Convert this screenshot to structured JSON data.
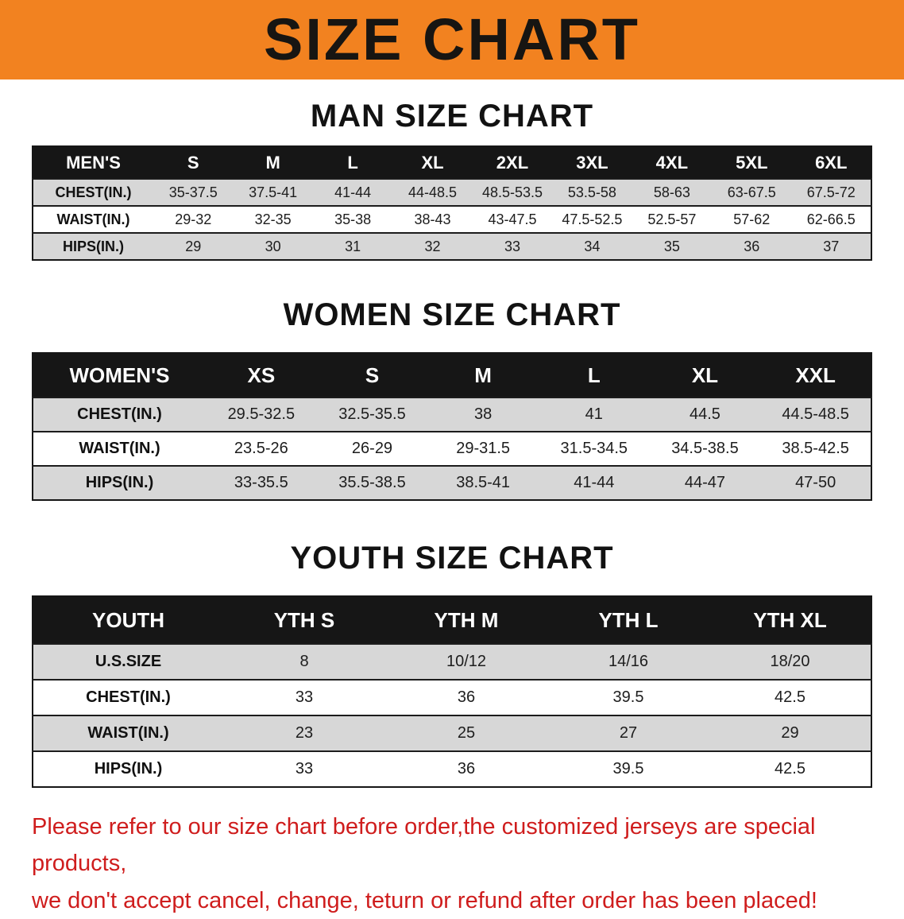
{
  "banner": {
    "title": "SIZE CHART"
  },
  "sections": {
    "men": {
      "heading": "MAN SIZE CHART",
      "table": {
        "header": [
          "MEN'S",
          "S",
          "M",
          "L",
          "XL",
          "2XL",
          "3XL",
          "4XL",
          "5XL",
          "6XL"
        ],
        "rows": [
          [
            "CHEST(IN.)",
            "35-37.5",
            "37.5-41",
            "41-44",
            "44-48.5",
            "48.5-53.5",
            "53.5-58",
            "58-63",
            "63-67.5",
            "67.5-72"
          ],
          [
            "WAIST(IN.)",
            "29-32",
            "32-35",
            "35-38",
            "38-43",
            "43-47.5",
            "47.5-52.5",
            "52.5-57",
            "57-62",
            "62-66.5"
          ],
          [
            "HIPS(IN.)",
            "29",
            "30",
            "31",
            "32",
            "33",
            "34",
            "35",
            "36",
            "37"
          ]
        ]
      }
    },
    "women": {
      "heading": "WOMEN SIZE CHART",
      "table": {
        "header": [
          "WOMEN'S",
          "XS",
          "S",
          "M",
          "L",
          "XL",
          "XXL"
        ],
        "rows": [
          [
            "CHEST(IN.)",
            "29.5-32.5",
            "32.5-35.5",
            "38",
            "41",
            "44.5",
            "44.5-48.5"
          ],
          [
            "WAIST(IN.)",
            "23.5-26",
            "26-29",
            "29-31.5",
            "31.5-34.5",
            "34.5-38.5",
            "38.5-42.5"
          ],
          [
            "HIPS(IN.)",
            "33-35.5",
            "35.5-38.5",
            "38.5-41",
            "41-44",
            "44-47",
            "47-50"
          ]
        ]
      }
    },
    "youth": {
      "heading": "YOUTH SIZE CHART",
      "table": {
        "header": [
          "YOUTH",
          "YTH S",
          "YTH M",
          "YTH L",
          "YTH XL"
        ],
        "rows": [
          [
            "U.S.SIZE",
            "8",
            "10/12",
            "14/16",
            "18/20"
          ],
          [
            "CHEST(IN.)",
            "33",
            "36",
            "39.5",
            "42.5"
          ],
          [
            "WAIST(IN.)",
            "23",
            "25",
            "27",
            "29"
          ],
          [
            "HIPS(IN.)",
            "33",
            "36",
            "39.5",
            "42.5"
          ]
        ]
      }
    }
  },
  "disclaimer": {
    "line1": "Please refer to our size chart before order,the customized jerseys are special products,",
    "line2": "we don't accept cancel, change, teturn or refund after order has been placed!"
  },
  "colors": {
    "banner_bg": "#f28220",
    "table_header_bg": "#161616",
    "alt_row_bg": "#d7d7d7",
    "disclaimer_text": "#cf1d1d"
  }
}
